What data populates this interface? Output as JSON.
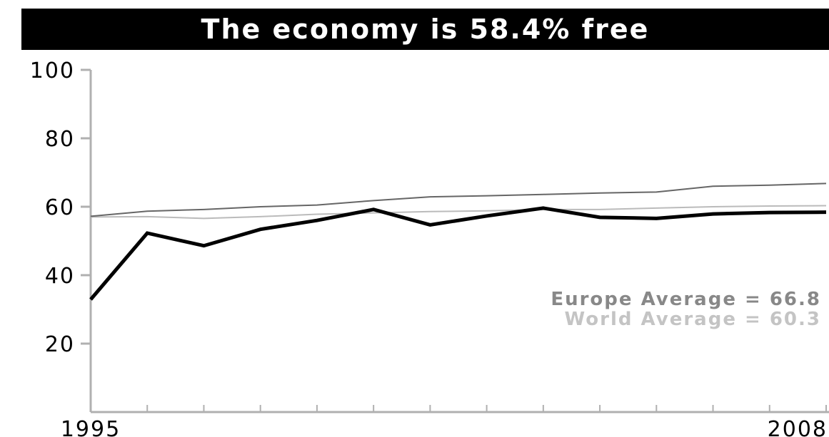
{
  "chart_data": {
    "type": "line",
    "title": "The economy is 58.4% free",
    "x": [
      1995,
      1996,
      1997,
      1998,
      1999,
      2000,
      2001,
      2002,
      2003,
      2004,
      2005,
      2006,
      2007,
      2008
    ],
    "x_tick_labels": [
      "1995",
      "2008"
    ],
    "y_ticks": [
      "100",
      "80",
      "60",
      "40",
      "20"
    ],
    "ylim": [
      0,
      100
    ],
    "grid": false,
    "series": [
      {
        "values": [
          32.9,
          52.3,
          48.6,
          53.4,
          56.0,
          59.2,
          54.7,
          57.3,
          59.6,
          56.9,
          56.6,
          57.9,
          58.3,
          58.4
        ],
        "color": "#000000"
      },
      {
        "values": [
          57.2,
          58.7,
          59.2,
          60.0,
          60.5,
          61.8,
          62.9,
          63.2,
          63.6,
          64.0,
          64.3,
          66.0,
          66.3,
          66.8
        ],
        "color": "#666666"
      },
      {
        "values": [
          57.0,
          57.1,
          56.6,
          57.1,
          57.8,
          58.2,
          58.6,
          58.8,
          59.2,
          59.2,
          59.6,
          60.0,
          60.2,
          60.3
        ],
        "color": "#bbbbbb"
      }
    ],
    "annotations": [
      {
        "text": "Europe Average = 66.8",
        "color": "#888888"
      },
      {
        "text": "World Average = 60.3",
        "color": "#c4c4c4"
      }
    ]
  }
}
